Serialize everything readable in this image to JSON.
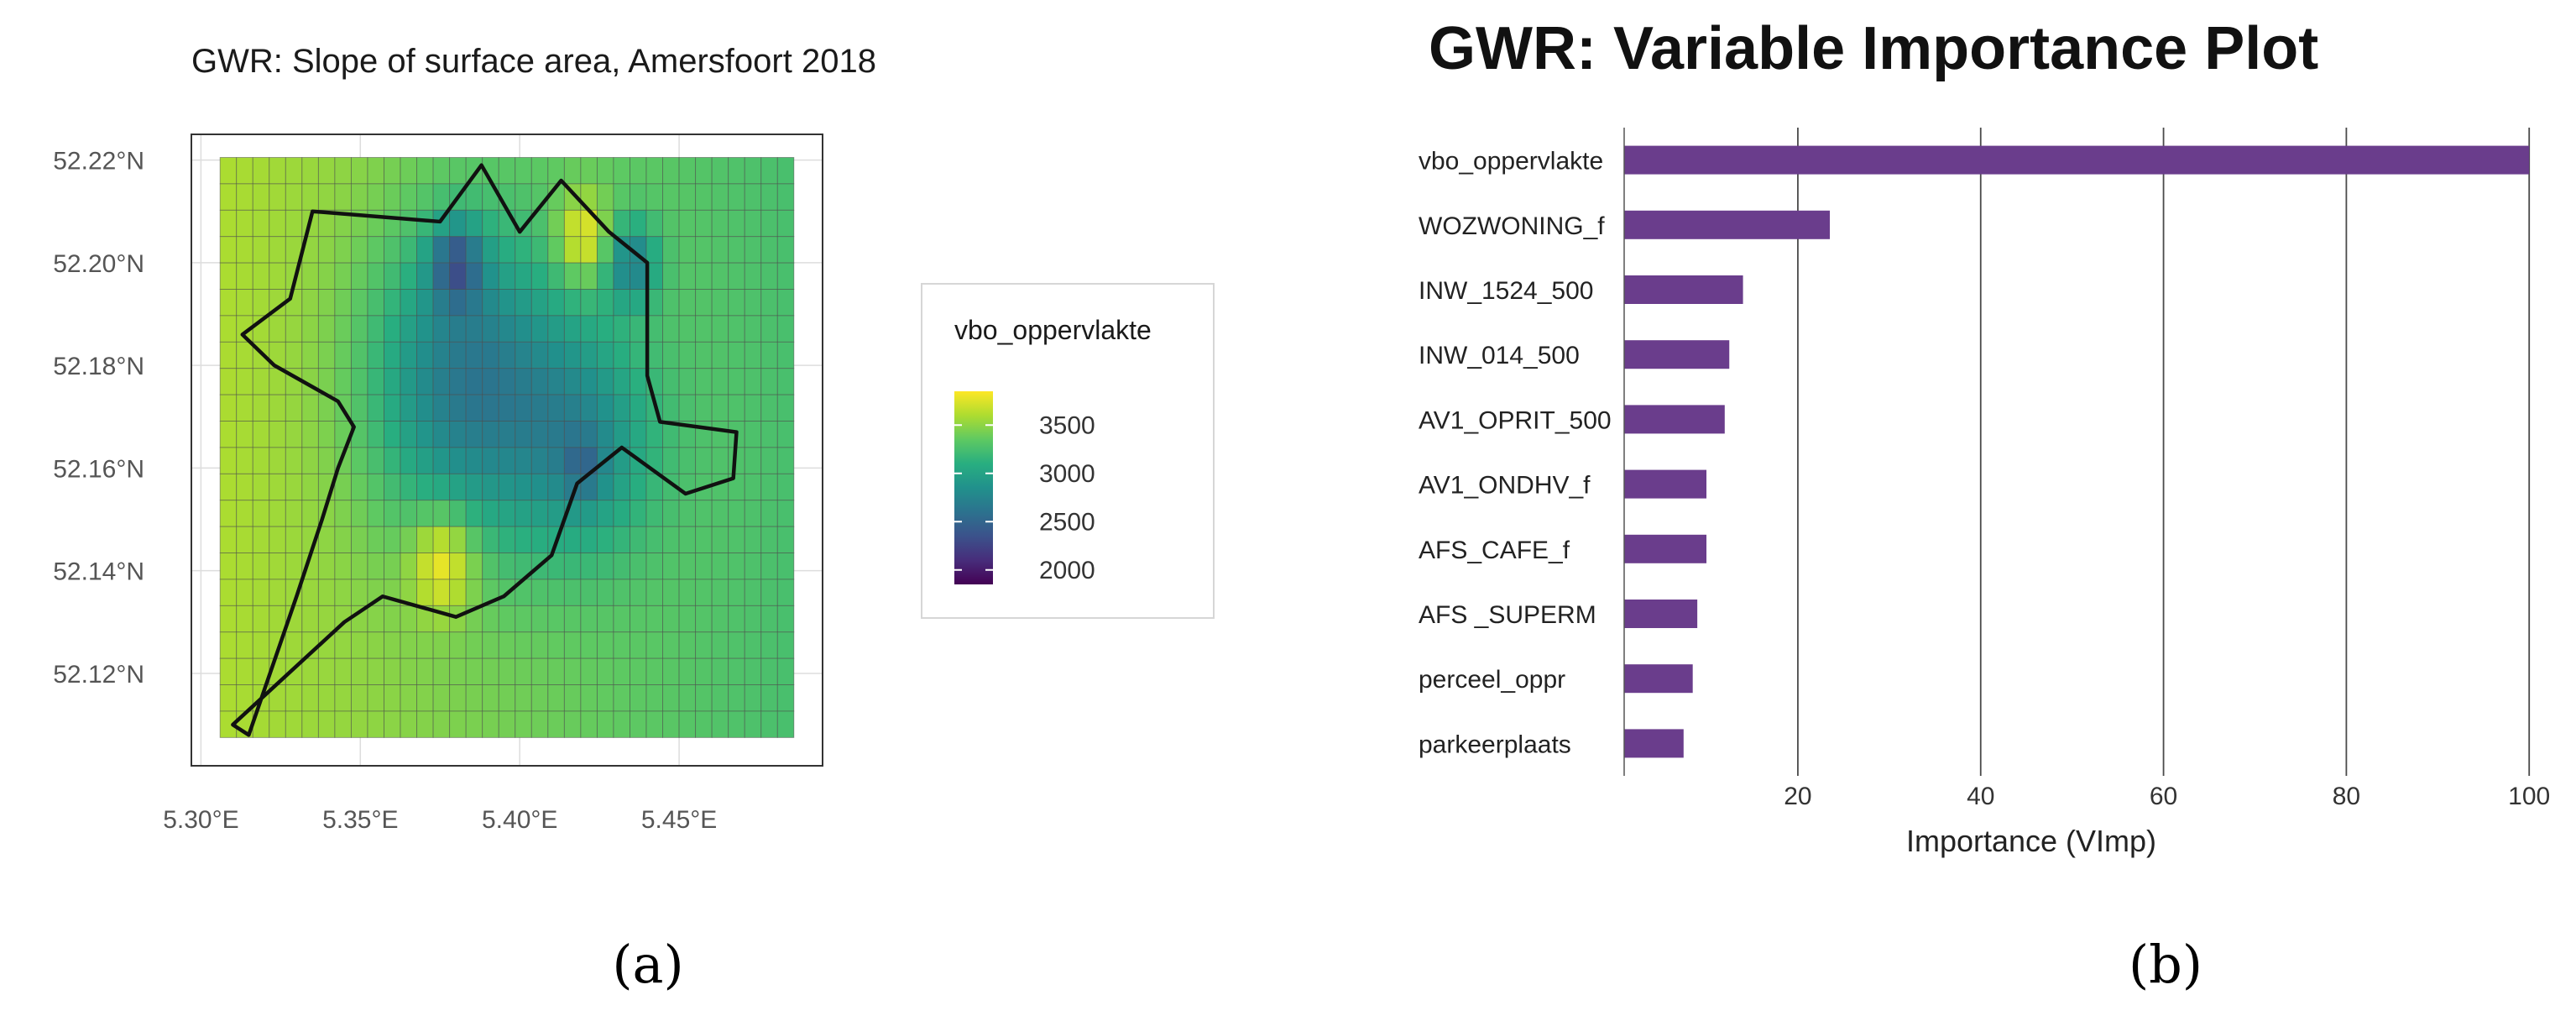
{
  "panels": {
    "a": {
      "label": "(a)"
    },
    "b": {
      "label": "(b)"
    }
  },
  "colors": {
    "bar": "#6a3d8c",
    "grid_major": "#dddddd",
    "grid_vertical_b": "#4a4a4a",
    "outline": "#111111",
    "viridis": [
      "#440154",
      "#472d7b",
      "#3b528b",
      "#2c728e",
      "#21918c",
      "#28ae80",
      "#5ec962",
      "#addc30",
      "#fde725"
    ]
  },
  "chart_data": [
    {
      "type": "heatmap",
      "title": "GWR: Slope of surface area, Amersfoort 2018",
      "xlabel": "",
      "ylabel": "",
      "x_ticks": [
        "5.30°E",
        "5.35°E",
        "5.40°E",
        "5.45°E"
      ],
      "x_tick_values": [
        5.3,
        5.35,
        5.4,
        5.45
      ],
      "y_ticks": [
        "52.22°N",
        "52.20°N",
        "52.18°N",
        "52.16°N",
        "52.14°N",
        "52.12°N"
      ],
      "y_tick_values": [
        52.22,
        52.2,
        52.18,
        52.16,
        52.14,
        52.12
      ],
      "xlim": [
        5.297,
        5.495
      ],
      "ylim": [
        52.102,
        52.225
      ],
      "grid": true,
      "legend": {
        "title": "vbo_oppervlakte",
        "position": "right",
        "range": [
          1850,
          3850
        ],
        "ticks": [
          3500,
          3000,
          2500,
          2000
        ]
      },
      "grid_extent": {
        "lon": [
          5.306,
          5.486
        ],
        "lat": [
          52.1075,
          52.2205
        ],
        "cols": 35,
        "rows": 22
      },
      "field_model": {
        "base": 3350,
        "blobs": [
          {
            "lon": 5.383,
            "lat": 52.177,
            "s": 0.03,
            "amp": -800
          },
          {
            "lon": 5.42,
            "lat": 52.165,
            "s": 0.022,
            "amp": -500
          },
          {
            "lon": 5.38,
            "lat": 52.2,
            "s": 0.008,
            "amp": -700
          },
          {
            "lon": 5.435,
            "lat": 52.2,
            "s": 0.008,
            "amp": -600
          },
          {
            "lon": 5.42,
            "lat": 52.16,
            "s": 0.006,
            "amp": -300
          },
          {
            "lon": 5.376,
            "lat": 52.142,
            "s": 0.01,
            "amp": 500
          },
          {
            "lon": 5.42,
            "lat": 52.205,
            "s": 0.008,
            "amp": 500
          }
        ]
      },
      "boundary": [
        [
          5.31,
          52.11
        ],
        [
          5.345,
          52.13
        ],
        [
          5.357,
          52.135
        ],
        [
          5.38,
          52.131
        ],
        [
          5.395,
          52.135
        ],
        [
          5.41,
          52.143
        ],
        [
          5.418,
          52.157
        ],
        [
          5.432,
          52.164
        ],
        [
          5.452,
          52.155
        ],
        [
          5.467,
          52.158
        ],
        [
          5.468,
          52.167
        ],
        [
          5.444,
          52.169
        ],
        [
          5.44,
          52.178
        ],
        [
          5.44,
          52.2
        ],
        [
          5.428,
          52.206
        ],
        [
          5.413,
          52.216
        ],
        [
          5.4,
          52.206
        ],
        [
          5.388,
          52.219
        ],
        [
          5.375,
          52.208
        ],
        [
          5.335,
          52.21
        ],
        [
          5.328,
          52.193
        ],
        [
          5.313,
          52.186
        ],
        [
          5.323,
          52.18
        ],
        [
          5.343,
          52.173
        ],
        [
          5.348,
          52.168
        ],
        [
          5.343,
          52.16
        ],
        [
          5.338,
          52.15
        ],
        [
          5.33,
          52.135
        ],
        [
          5.315,
          52.108
        ],
        [
          5.31,
          52.11
        ]
      ]
    },
    {
      "type": "bar",
      "orientation": "horizontal",
      "title": "GWR: Variable Importance Plot",
      "xlabel": "Importance (VImp)",
      "ylabel": "",
      "categories": [
        "vbo_oppervlakte",
        "WOZWONING_f",
        "INW_1524_500",
        "INW_014_500",
        "AV1_OPRIT_500",
        "AV1_ONDHV_f",
        "AFS_CAFE_f",
        "AFS _SUPERM",
        "perceel_oppr",
        "parkeerplaats"
      ],
      "values": [
        100,
        23.5,
        14,
        12.5,
        12,
        10,
        10,
        9,
        8.5,
        7.5
      ],
      "xlim": [
        1,
        102
      ],
      "x_ticks": [
        20,
        40,
        60,
        80,
        100
      ],
      "grid": true
    }
  ]
}
